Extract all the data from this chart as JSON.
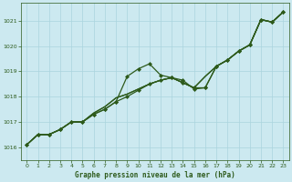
{
  "title": "Graphe pression niveau de la mer (hPa)",
  "background_color": "#cce9f0",
  "grid_color": "#aad4de",
  "line_color": "#2d5a1b",
  "marker_color": "#2d5a1b",
  "xlim": [
    -0.5,
    23.5
  ],
  "ylim": [
    1015.5,
    1021.7
  ],
  "yticks": [
    1016,
    1017,
    1018,
    1019,
    1020,
    1021
  ],
  "xticks": [
    0,
    1,
    2,
    3,
    4,
    5,
    6,
    7,
    8,
    9,
    10,
    11,
    12,
    13,
    14,
    15,
    16,
    17,
    18,
    19,
    20,
    21,
    22,
    23
  ],
  "line1": [
    1016.1,
    1016.5,
    1016.5,
    1016.7,
    1017.0,
    1017.0,
    1017.3,
    1017.5,
    1017.8,
    1018.8,
    1019.1,
    1019.3,
    1018.85,
    1018.75,
    1018.65,
    1018.3,
    1018.35,
    1019.2,
    1019.45,
    1019.8,
    1020.05,
    1021.05,
    1020.95,
    1021.35
  ],
  "line2": [
    1016.1,
    1016.5,
    1016.5,
    1016.7,
    1017.0,
    1017.0,
    1017.3,
    1017.5,
    1017.8,
    1018.0,
    1018.25,
    1018.5,
    1018.65,
    1018.75,
    1018.55,
    1018.35,
    1018.35,
    1019.2,
    1019.45,
    1019.8,
    1020.05,
    1021.05,
    1020.95,
    1021.35
  ],
  "line3": [
    1016.1,
    1016.5,
    1016.5,
    1016.7,
    1017.0,
    1017.0,
    1017.35,
    1017.6,
    1017.95,
    1018.1,
    1018.3,
    1018.5,
    1018.65,
    1018.75,
    1018.55,
    1018.35,
    1018.8,
    1019.2,
    1019.45,
    1019.8,
    1020.05,
    1021.05,
    1020.95,
    1021.35
  ],
  "line4": [
    1016.1,
    1016.5,
    1016.5,
    1016.7,
    1017.0,
    1017.0,
    1017.35,
    1017.6,
    1017.95,
    1018.1,
    1018.3,
    1018.5,
    1018.65,
    1018.75,
    1018.55,
    1018.35,
    1018.8,
    1019.2,
    1019.45,
    1019.8,
    1020.05,
    1021.05,
    1020.95,
    1021.35
  ]
}
